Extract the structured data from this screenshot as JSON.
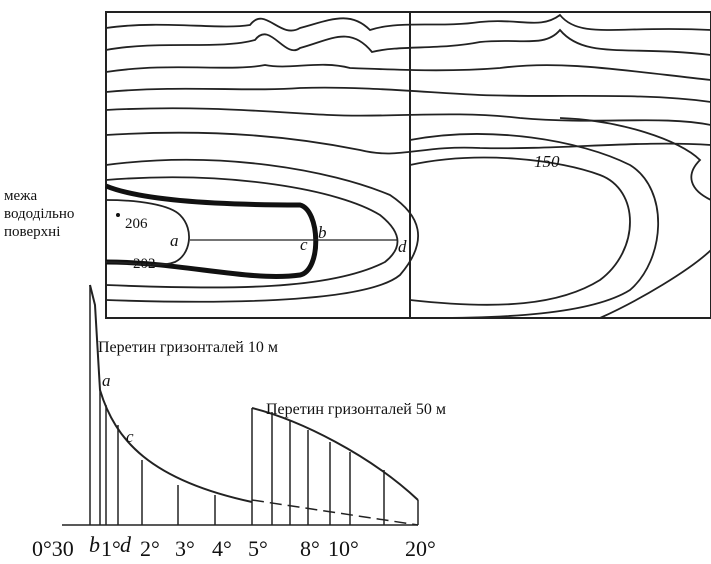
{
  "map": {
    "boundary_label": [
      "межа",
      "вододільно",
      "поверхні"
    ],
    "heights": [
      "206",
      "202",
      "150"
    ],
    "points": [
      "a",
      "b",
      "c",
      "d"
    ]
  },
  "scale": {
    "caption_10": "Перетин гризонталей 10 м",
    "caption_50": "Перетин гризонталей 50 м",
    "points": [
      "a",
      "c"
    ],
    "labels": [
      "0°30",
      "b",
      "1°",
      "d",
      "2°",
      "3°",
      "4°",
      "5°",
      "8°",
      "10°",
      "20°"
    ]
  }
}
